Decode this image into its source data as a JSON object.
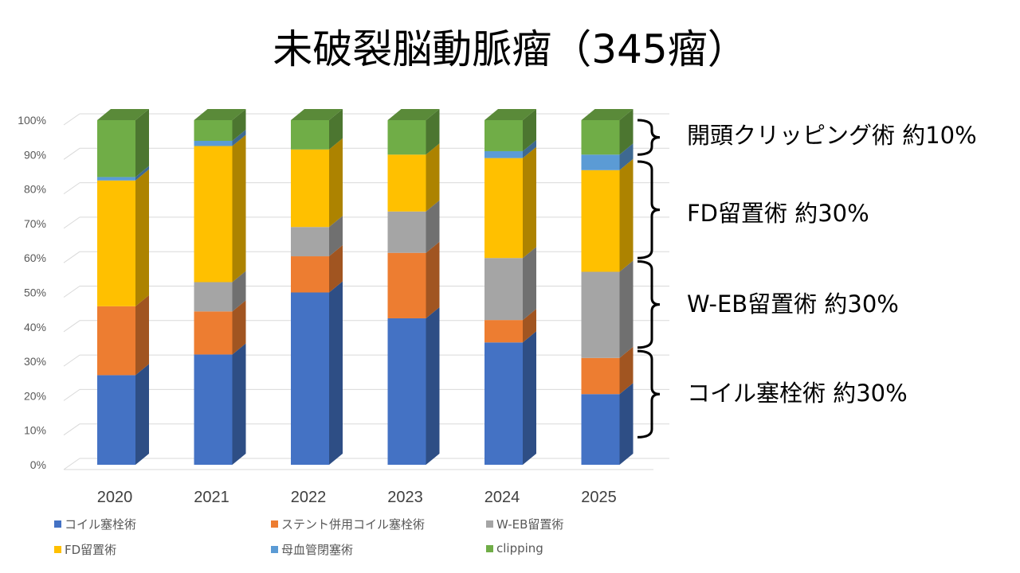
{
  "title": "未破裂脳動脈瘤（345瘤）",
  "chart_data": {
    "type": "bar",
    "stacked": true,
    "percent": true,
    "categories": [
      "2020",
      "2021",
      "2022",
      "2023",
      "2024",
      "2025"
    ],
    "y_ticks": [
      "0%",
      "10%",
      "20%",
      "30%",
      "40%",
      "50%",
      "60%",
      "70%",
      "80%",
      "90%",
      "100%"
    ],
    "ylim": [
      0,
      100
    ],
    "grid": true,
    "legend_position": "bottom",
    "series": [
      {
        "name": "コイル塞栓術",
        "color": "#4472C4",
        "values": [
          26,
          32,
          50,
          42.5,
          35.5,
          20.5
        ]
      },
      {
        "name": "ステント併用コイル塞栓術",
        "color": "#ED7D31",
        "values": [
          20,
          12.5,
          10.5,
          19,
          6.5,
          10.5
        ]
      },
      {
        "name": "W-EB留置術",
        "color": "#A5A5A5",
        "values": [
          0,
          8.5,
          8.5,
          12,
          18,
          25
        ]
      },
      {
        "name": "FD留置術",
        "color": "#FFC000",
        "values": [
          36.5,
          39.5,
          22.5,
          16.5,
          29,
          29.5
        ]
      },
      {
        "name": "母血管閉塞術",
        "color": "#5B9BD5",
        "values": [
          1,
          1.5,
          0,
          0,
          2,
          4.5
        ]
      },
      {
        "name": "clipping",
        "color": "#70AD47",
        "values": [
          16.5,
          6,
          8.5,
          10,
          9,
          10
        ]
      }
    ]
  },
  "annotations": [
    {
      "label": "開頭クリッピング術 約10%",
      "from": 90,
      "to": 100
    },
    {
      "label": "FD留置術 約30%",
      "from": 60,
      "to": 88
    },
    {
      "label": "W-EB留置術 約30%",
      "from": 34,
      "to": 59
    },
    {
      "label": "コイル塞栓術 約30%",
      "from": 8,
      "to": 33
    }
  ]
}
